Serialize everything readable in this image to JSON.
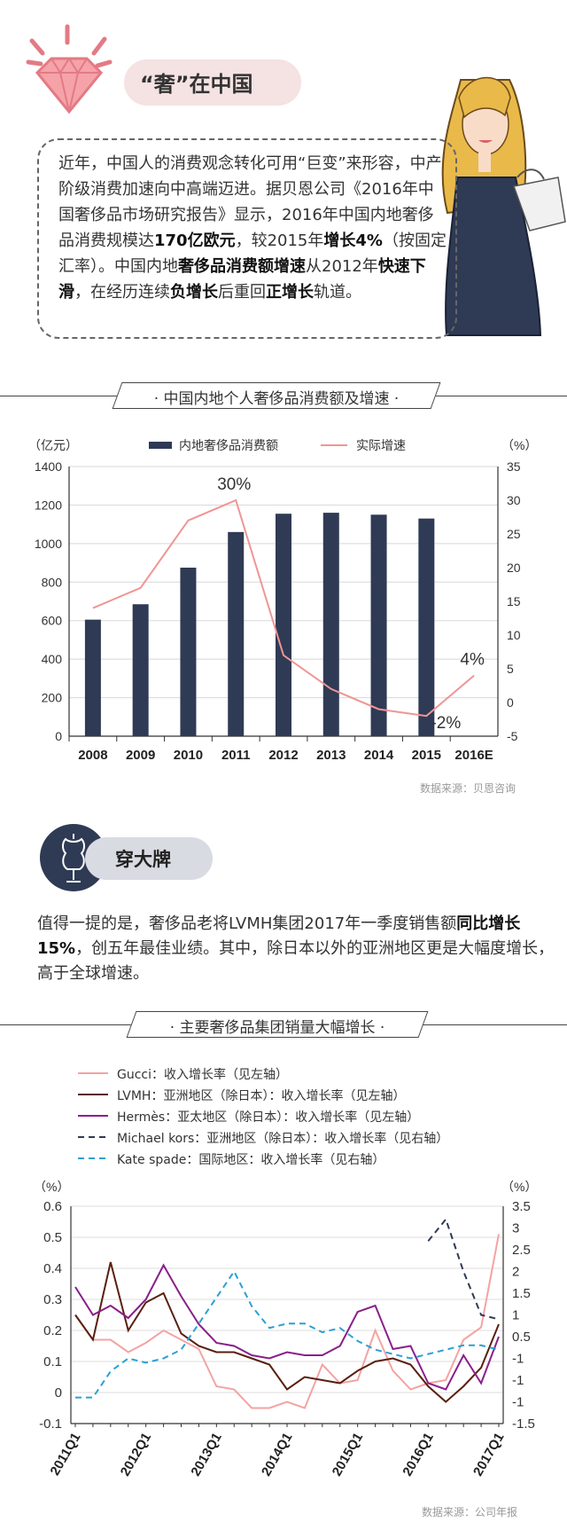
{
  "section1": {
    "title": "“奢”在中国"
  },
  "intro": {
    "plain1": "近年，中国人的消费观念转化可用“巨变”来形容，中产阶级消费加速向中高端迈进。据贝恩公司《2016年中国奢侈品市场研究报告》显示，2016年中国内地奢侈品消费规模达",
    "bold1": "170亿欧元",
    "plain2": "，较2015年",
    "bold2": "增长4%",
    "plain3": "（按固定汇率）。中国内地",
    "bold3": "奢侈品消费额增速",
    "plain4": "从2012年",
    "bold4": "快速下滑",
    "plain5": "，在经历连续",
    "bold5": "负增长",
    "plain6": "后重回",
    "bold6": "正增长",
    "plain7": "轨道。"
  },
  "chart1_banner": "· 中国内地个人奢侈品消费额及增速 ·",
  "chart1_source": "数据来源：贝恩咨询",
  "section2": {
    "title": "穿大牌"
  },
  "para2": {
    "plain1": "值得一提的是，奢侈品老将LVMH集团2017年一季度销售额",
    "bold1": "同比增长15%",
    "plain2": "，创五年最佳业绩。其中，除日本以外的亚洲地区更是大幅度增长，高于全球增速。"
  },
  "chart2_banner": "· 主要奢侈品集团销量大幅增长 ·",
  "chart2_source": "数据来源：公司年报",
  "chart_data": [
    {
      "type": "bar+line",
      "categories": [
        "2008",
        "2009",
        "2010",
        "2011",
        "2012",
        "2013",
        "2014",
        "2015",
        "2016E"
      ],
      "series": [
        {
          "name": "内地奢侈品消费额",
          "type": "bar",
          "axis": "left",
          "values": [
            605,
            685,
            875,
            1060,
            1155,
            1160,
            1150,
            1130,
            null
          ]
        },
        {
          "name": "实际增速",
          "type": "line",
          "axis": "right",
          "values": [
            14,
            17,
            27,
            30,
            7,
            2,
            -1,
            -2,
            4
          ]
        }
      ],
      "annotations": [
        {
          "category": "2011",
          "text": "30%"
        },
        {
          "category": "2015",
          "text": "-2%"
        },
        {
          "category": "2016E",
          "text": "4%"
        }
      ],
      "ylabel_left": "（亿元）",
      "ylim_left": [
        0,
        1400
      ],
      "yticks_left": [
        0,
        200,
        400,
        600,
        800,
        1000,
        1200,
        1400
      ],
      "ylabel_right": "（%）",
      "ylim_right": [
        -5,
        35
      ],
      "yticks_right": [
        -5,
        0,
        5,
        10,
        15,
        20,
        25,
        30,
        35
      ],
      "colors": {
        "bar": "#2f3a55",
        "line": "#f09595"
      },
      "grid": "horizontal",
      "legend": "top"
    },
    {
      "type": "line",
      "x": [
        "2011Q1",
        "2011Q2",
        "2011Q3",
        "2011Q4",
        "2012Q1",
        "2012Q2",
        "2012Q3",
        "2012Q4",
        "2013Q1",
        "2013Q2",
        "2013Q3",
        "2013Q4",
        "2014Q1",
        "2014Q2",
        "2014Q3",
        "2014Q4",
        "2015Q1",
        "2015Q2",
        "2015Q3",
        "2015Q4",
        "2016Q1",
        "2016Q2",
        "2016Q3",
        "2016Q4",
        "2017Q1"
      ],
      "xtick_labels": [
        "2011Q1",
        "2012Q1",
        "2013Q1",
        "2014Q1",
        "2015Q1",
        "2016Q1",
        "2017Q1"
      ],
      "series": [
        {
          "name": "Gucci：收入增长率（见左轴）",
          "axis": "left",
          "color": "#f4a3a3",
          "dash": "solid",
          "values": [
            0.25,
            0.17,
            0.17,
            0.13,
            0.16,
            0.2,
            0.17,
            0.14,
            0.02,
            0.01,
            -0.05,
            -0.05,
            -0.03,
            -0.05,
            0.09,
            0.03,
            0.04,
            0.2,
            0.07,
            0.01,
            0.03,
            0.04,
            0.17,
            0.21,
            0.51
          ]
        },
        {
          "name": "LVMH：亚洲地区（除日本）：收入增长率（见左轴）",
          "axis": "left",
          "color": "#5a1f10",
          "dash": "solid",
          "values": [
            0.25,
            0.17,
            0.42,
            0.2,
            0.29,
            0.32,
            0.19,
            0.15,
            0.13,
            0.13,
            0.11,
            0.09,
            0.01,
            0.05,
            0.04,
            0.03,
            0.07,
            0.1,
            0.11,
            0.09,
            0.02,
            -0.03,
            0.02,
            0.08,
            0.22
          ]
        },
        {
          "name": "Hermès：亚太地区（除日本）：收入增长率（见左轴）",
          "axis": "left",
          "color": "#8a1f8a",
          "dash": "solid",
          "values": [
            0.34,
            0.25,
            0.28,
            0.24,
            0.3,
            0.41,
            0.31,
            0.22,
            0.16,
            0.15,
            0.12,
            0.11,
            0.13,
            0.12,
            0.12,
            0.15,
            0.26,
            0.28,
            0.14,
            0.15,
            0.03,
            0.01,
            0.12,
            0.03,
            0.18
          ]
        },
        {
          "name": "Michael kors：亚洲地区（除日本）：收入增长率（见右轴）",
          "axis": "right",
          "color": "#2f3a55",
          "dash": "dashed",
          "values": [
            null,
            null,
            null,
            null,
            null,
            null,
            null,
            null,
            null,
            null,
            null,
            null,
            null,
            null,
            null,
            null,
            null,
            null,
            null,
            null,
            2.7,
            3.2,
            2.0,
            1.0,
            0.9
          ]
        },
        {
          "name": "Kate spade：国际地区：收入增长率（见右轴）",
          "axis": "right",
          "color": "#2aa0d4",
          "dash": "dashed",
          "values": [
            -0.9,
            -0.9,
            -0.3,
            0.0,
            -0.1,
            0.0,
            0.2,
            0.8,
            1.4,
            2.0,
            1.2,
            0.7,
            0.8,
            0.8,
            0.6,
            0.7,
            0.4,
            0.2,
            0.1,
            0.0,
            0.1,
            0.2,
            0.3,
            0.3,
            0.2
          ]
        }
      ],
      "ylabel_left": "（%）",
      "ylim_left": [
        -0.1,
        0.6
      ],
      "yticks_left": [
        -0.1,
        0,
        0.1,
        0.2,
        0.3,
        0.4,
        0.5,
        0.6
      ],
      "ylabel_right": "（%）",
      "ylim_right": [
        -1.5,
        3.5
      ],
      "ytick_labels_right": [
        "-1.5",
        "-1",
        "-1",
        "-1",
        "0.5",
        "1",
        "1.5",
        "2",
        "2.5",
        "3",
        "3.5"
      ],
      "grid": "horizontal",
      "legend": "top"
    }
  ]
}
